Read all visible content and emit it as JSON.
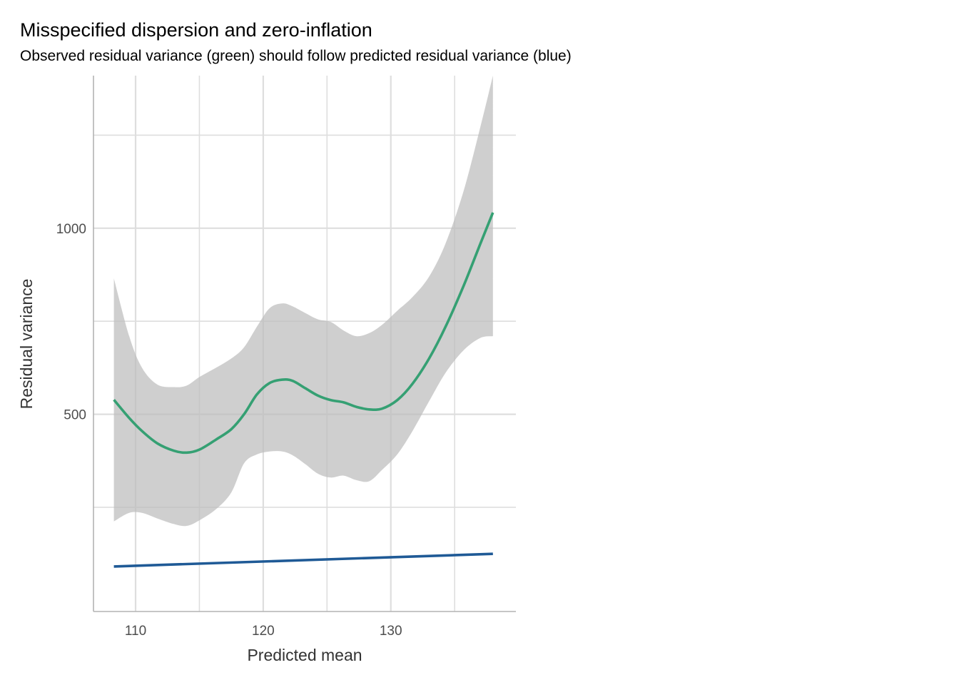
{
  "chart_data": {
    "type": "line",
    "title": "Misspecified dispersion and zero-inflation",
    "subtitle": "Observed residual variance (green) should follow predicted residual variance (blue)",
    "xlabel": "Predicted mean",
    "ylabel": "Residual variance",
    "xlim": [
      106.7,
      139.8
    ],
    "ylim": [
      -30,
      1410
    ],
    "x_ticks": [
      110,
      120,
      130
    ],
    "x_tick_labels": [
      "110",
      "120",
      "130"
    ],
    "x_minor_grid": [
      115,
      125,
      135
    ],
    "y_ticks": [
      500,
      1000
    ],
    "y_tick_labels": [
      "500",
      "1000"
    ],
    "y_minor_grid": [
      250,
      750,
      1250
    ],
    "grid": true,
    "colors": {
      "observed": "#35a073",
      "predicted": "#1f5a96",
      "ribbon": "#bdbdbd",
      "grid": "#dedede",
      "axis": "#b3b3b3"
    },
    "series": [
      {
        "kind": "line",
        "color": "#35a073",
        "x": [
          108.3,
          109.5,
          110.5,
          111.7,
          113.0,
          114.0,
          115.0,
          116.3,
          117.5,
          118.5,
          119.5,
          120.5,
          121.5,
          122.3,
          123.3,
          124.3,
          125.3,
          126.3,
          127.3,
          128.3,
          129.3,
          130.5,
          131.7,
          133.0,
          134.3,
          135.7,
          137.0,
          138.0
        ],
        "y": [
          539,
          490,
          455,
          422,
          402,
          397,
          405,
          432,
          460,
          500,
          553,
          584,
          593,
          590,
          570,
          550,
          538,
          532,
          520,
          513,
          515,
          538,
          582,
          650,
          736,
          845,
          957,
          1042
        ]
      },
      {
        "kind": "line",
        "color": "#1f5a96",
        "x": [
          108.3,
          138.0
        ],
        "y": [
          91,
          125
        ]
      },
      {
        "kind": "ribbon",
        "color": "#bdbdbd",
        "x": [
          108.3,
          109.5,
          110.5,
          111.7,
          113.0,
          114.0,
          115.0,
          116.3,
          117.5,
          118.5,
          119.5,
          120.5,
          121.5,
          122.3,
          123.3,
          124.3,
          125.3,
          126.3,
          127.3,
          128.3,
          129.3,
          130.5,
          131.7,
          133.0,
          134.3,
          135.7,
          137.0,
          138.0
        ],
        "lower": [
          212,
          235,
          235,
          220,
          205,
          200,
          215,
          245,
          290,
          368,
          392,
          400,
          400,
          390,
          366,
          340,
          330,
          335,
          323,
          320,
          350,
          392,
          455,
          535,
          612,
          672,
          705,
          710
        ],
        "upper": [
          865,
          710,
          625,
          580,
          573,
          577,
          600,
          625,
          650,
          680,
          735,
          785,
          798,
          790,
          772,
          755,
          748,
          725,
          710,
          718,
          740,
          778,
          815,
          870,
          960,
          1100,
          1270,
          1410
        ]
      }
    ]
  }
}
